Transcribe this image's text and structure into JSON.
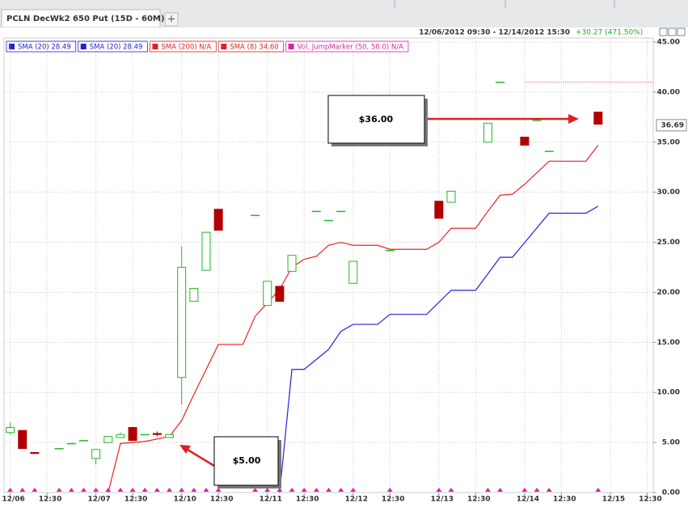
{
  "chart_data": {
    "type": "candlestick",
    "tabs": {
      "title": "PCLN DecWk2 650 Put (15D - 60M)",
      "add": "+"
    },
    "subtitle": "12/06/2012 09:30 - 12/14/2012 15:30",
    "change": "+30.27 (471.50%)",
    "change_color": "#22aa22",
    "legend": [
      {
        "label": "SMA (20) 28.49",
        "color": "#2222cc"
      },
      {
        "label": "SMA (20) 28.49",
        "color": "#2222cc"
      },
      {
        "label": "SMA (200) N/A",
        "color": "#dd2222"
      },
      {
        "label": "SMA (8) 34.60",
        "color": "#dd2222"
      },
      {
        "label": "Vol. JumpMarker (50, 50.0) N/A",
        "color": "#dd22aa"
      }
    ],
    "x": [
      0,
      1,
      2,
      4,
      5,
      6,
      7,
      8,
      9,
      10,
      11,
      12,
      13,
      14,
      15,
      16,
      17,
      20,
      21,
      22,
      23,
      25,
      26,
      27,
      28,
      31,
      35,
      36,
      39,
      40,
      42,
      43,
      44,
      48
    ],
    "open": [
      6.0,
      6.2,
      4.0,
      4.4,
      4.9,
      5.2,
      3.4,
      5.0,
      5.5,
      6.5,
      5.8,
      5.9,
      5.5,
      11.5,
      19.1,
      22.2,
      28.3,
      27.7,
      18.7,
      20.6,
      22.1,
      28.1,
      27.2,
      28.1,
      20.9,
      24.2,
      29.1,
      29.0,
      35.0,
      41.0,
      35.5,
      37.2,
      34.1,
      38.0
    ],
    "high": [
      7.0,
      6.2,
      4.0,
      4.4,
      4.9,
      5.2,
      4.3,
      5.6,
      6.0,
      6.5,
      5.8,
      6.1,
      5.8,
      24.6,
      20.4,
      26.0,
      28.3,
      27.7,
      21.1,
      20.6,
      23.7,
      28.1,
      27.2,
      28.1,
      23.1,
      24.2,
      29.1,
      30.1,
      36.9,
      41.0,
      35.5,
      37.2,
      34.1,
      38.0
    ],
    "low": [
      5.8,
      4.4,
      3.9,
      4.4,
      4.9,
      5.2,
      2.8,
      5.0,
      5.5,
      5.2,
      5.8,
      5.6,
      5.5,
      8.8,
      19.1,
      22.2,
      26.2,
      27.7,
      18.7,
      19.1,
      22.1,
      28.1,
      27.2,
      28.1,
      20.9,
      24.2,
      27.4,
      29.0,
      35.0,
      41.0,
      34.7,
      37.2,
      34.1,
      36.8
    ],
    "close": [
      6.5,
      4.4,
      3.9,
      4.4,
      4.9,
      5.2,
      4.3,
      5.6,
      5.8,
      5.2,
      5.8,
      5.8,
      5.8,
      22.5,
      20.4,
      26.0,
      26.2,
      27.7,
      21.1,
      19.1,
      23.7,
      28.1,
      27.2,
      28.1,
      23.1,
      24.2,
      27.4,
      30.1,
      36.9,
      41.0,
      34.7,
      37.2,
      34.1,
      36.8
    ],
    "up_color": "#22bb22",
    "down_color": "#b00000",
    "lines": [
      {
        "color": "#ee2222",
        "x": [
          8,
          9,
          11,
          13,
          14,
          15,
          17,
          19,
          20,
          22,
          23,
          24,
          25,
          26,
          27,
          28,
          30,
          31,
          34,
          35,
          36,
          38,
          39,
          40,
          41,
          42,
          44,
          47,
          48
        ],
        "values": [
          0,
          4.9,
          5.1,
          5.6,
          7.2,
          9.8,
          14.8,
          14.8,
          17.6,
          20.3,
          22.5,
          23.3,
          23.6,
          24.7,
          25.0,
          24.7,
          24.7,
          24.3,
          24.3,
          25.0,
          26.4,
          26.4,
          28.1,
          29.7,
          29.8,
          30.8,
          33.1,
          33.1,
          34.7
        ]
      },
      {
        "color": "#2222dd",
        "x": [
          22,
          23,
          24,
          26,
          27,
          28,
          30,
          31,
          34,
          36,
          38,
          40,
          41,
          44,
          47,
          48
        ],
        "values": [
          0,
          12.3,
          12.3,
          14.3,
          16.1,
          16.8,
          16.8,
          17.8,
          17.8,
          20.2,
          20.2,
          23.5,
          23.5,
          27.9,
          27.9,
          28.6
        ]
      }
    ],
    "reference_line": {
      "value": 41,
      "x_start": 42,
      "color": "#ee4444"
    },
    "jump_markers_x": [
      0,
      1,
      2,
      4,
      5,
      6,
      7,
      8,
      9,
      10,
      11,
      12,
      13,
      14,
      15,
      16,
      17,
      20,
      21,
      22,
      23,
      24,
      25,
      26,
      27,
      28,
      31,
      35,
      36,
      39,
      40,
      42,
      43,
      44,
      48
    ],
    "jump_marker_color": "#dd22aa",
    "last_price": 36.69,
    "annotations": [
      "$36.00",
      "$5.00"
    ],
    "xlim": [
      -0.5,
      52.5
    ],
    "ylim": [
      0,
      45
    ],
    "xticks": [
      {
        "value": 0,
        "label": "12/06"
      },
      {
        "value": 3,
        "label": "12:30"
      },
      {
        "value": 7,
        "label": "12/07"
      },
      {
        "value": 10,
        "label": "12:30"
      },
      {
        "value": 14,
        "label": "12/10"
      },
      {
        "value": 17,
        "label": "12:30"
      },
      {
        "value": 21,
        "label": "12/11"
      },
      {
        "value": 24,
        "label": "12:30"
      },
      {
        "value": 28,
        "label": "12/12"
      },
      {
        "value": 31,
        "label": "12:30"
      },
      {
        "value": 35,
        "label": "12/13"
      },
      {
        "value": 38,
        "label": "12:30"
      },
      {
        "value": 42,
        "label": "12/14"
      },
      {
        "value": 45,
        "label": "12:30"
      },
      {
        "value": 49,
        "label": "12/15"
      },
      {
        "value": 52,
        "label": "12:30"
      }
    ],
    "yticks": [
      {
        "value": 0,
        "label": "0.00"
      },
      {
        "value": 5,
        "label": "5.00"
      },
      {
        "value": 10,
        "label": "10.00"
      },
      {
        "value": 15,
        "label": "15.00"
      },
      {
        "value": 20,
        "label": "20.00"
      },
      {
        "value": 25,
        "label": "25.00"
      },
      {
        "value": 30,
        "label": "30.00"
      },
      {
        "value": 35,
        "label": "35.00"
      },
      {
        "value": 40,
        "label": "40.00"
      },
      {
        "value": 45,
        "label": "45.00"
      }
    ],
    "grid": true
  }
}
